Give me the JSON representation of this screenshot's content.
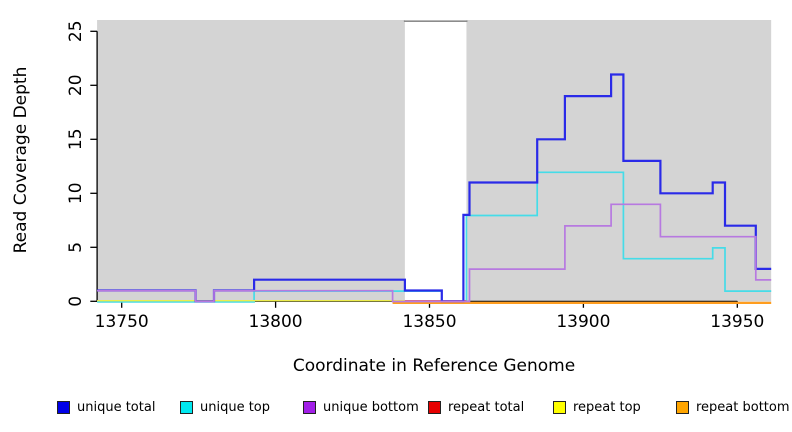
{
  "chart_data": {
    "type": "step",
    "title": "",
    "xlabel": "Coordinate in Reference Genome",
    "ylabel": "Read Coverage Depth",
    "x_axis": {
      "ticks": [
        13750,
        13800,
        13850,
        13900,
        13950
      ]
    },
    "y_axis": {
      "ticks": [
        0,
        5,
        10,
        15,
        20,
        25
      ]
    },
    "x_range": [
      13742,
      13961
    ],
    "y_range": [
      0,
      26
    ],
    "grid": "off",
    "shaded_regions": [
      {
        "name": "left-shaded",
        "x0": 13742,
        "x1": 13842,
        "fill": "#d4d4d4"
      },
      {
        "name": "right-shaded",
        "x0": 13862,
        "x1": 13961,
        "fill": "#d4d4d4"
      }
    ],
    "gap_border": {
      "x0": 13842,
      "x1": 13862,
      "stroke": "#8c8c8c"
    },
    "series": [
      {
        "name": "unique total",
        "color": "#2a2ae8",
        "points": [
          [
            13742,
            1
          ],
          [
            13774,
            0
          ],
          [
            13780,
            1
          ],
          [
            13793,
            2
          ],
          [
            13842,
            1
          ],
          [
            13854,
            0
          ],
          [
            13861,
            8
          ],
          [
            13863,
            11
          ],
          [
            13885,
            15
          ],
          [
            13894,
            19
          ],
          [
            13909,
            21
          ],
          [
            13913,
            13
          ],
          [
            13925,
            10
          ],
          [
            13942,
            11
          ],
          [
            13946,
            7
          ],
          [
            13956,
            3
          ],
          [
            13961,
            3
          ]
        ]
      },
      {
        "name": "unique top",
        "color": "#45dce8",
        "points": [
          [
            13742,
            0
          ],
          [
            13793,
            1
          ],
          [
            13854,
            0
          ],
          [
            13862,
            8
          ],
          [
            13885,
            12
          ],
          [
            13913,
            4
          ],
          [
            13942,
            5
          ],
          [
            13946,
            1
          ],
          [
            13961,
            1
          ]
        ]
      },
      {
        "name": "unique bottom",
        "color": "#b779e0",
        "points": [
          [
            13742,
            1
          ],
          [
            13774,
            0
          ],
          [
            13780,
            1
          ],
          [
            13838,
            0
          ],
          [
            13863,
            3
          ],
          [
            13894,
            7
          ],
          [
            13909,
            9
          ],
          [
            13925,
            6
          ],
          [
            13956,
            2
          ],
          [
            13961,
            2
          ]
        ]
      },
      {
        "name": "repeat total",
        "color": "#d8404f",
        "points": [
          [
            13842,
            0
          ],
          [
            13862,
            0
          ]
        ]
      },
      {
        "name": "repeat top",
        "color": "#eded4d",
        "points": [
          [
            13742,
            0
          ],
          [
            13842,
            0
          ]
        ]
      },
      {
        "name": "repeat bottom",
        "color": "#ff9d1e",
        "points": [
          [
            13838,
            0
          ],
          [
            13961,
            0
          ]
        ]
      }
    ]
  },
  "legend": {
    "position": "bottom",
    "items": [
      {
        "label": "unique total",
        "color": "#0000e8"
      },
      {
        "label": "unique top",
        "color": "#00e8f0"
      },
      {
        "label": "unique bottom",
        "color": "#a21fe8"
      },
      {
        "label": "repeat total",
        "color": "#e60000"
      },
      {
        "label": "repeat top",
        "color": "#ffff00"
      },
      {
        "label": "repeat bottom",
        "color": "#ffa500"
      }
    ]
  }
}
